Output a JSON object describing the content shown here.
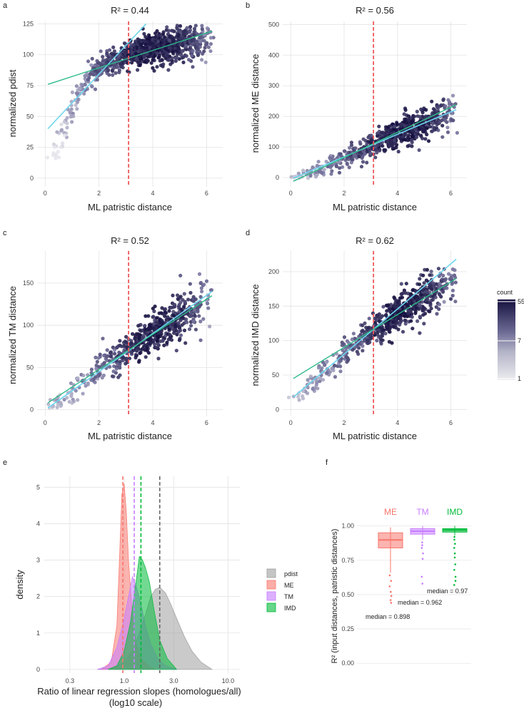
{
  "chart_data": [
    {
      "panel": "a",
      "type": "scatter",
      "title": "R² =  0.44",
      "xlabel": "ML patristic distance",
      "ylabel": "normalized pdist",
      "xlim": [
        -0.3,
        6.6
      ],
      "ylim": [
        -7,
        127
      ],
      "xticks": [
        0,
        2,
        4,
        6
      ],
      "yticks": [
        0,
        25,
        50,
        75,
        100,
        125
      ],
      "cutoff_x": 3.1,
      "fit_all": {
        "x": [
          0.1,
          6.2
        ],
        "y": [
          76,
          119
        ]
      },
      "fit_homologues": {
        "x": [
          0.1,
          3.75
        ],
        "y": [
          40,
          125
        ]
      },
      "cloud": [
        {
          "x": 0.35,
          "y": 18,
          "c": 1
        },
        {
          "x": 0.5,
          "y": 26,
          "c": 2
        },
        {
          "x": 0.65,
          "y": 38,
          "c": 3
        },
        {
          "x": 0.85,
          "y": 48,
          "c": 4
        },
        {
          "x": 1.0,
          "y": 57,
          "c": 5
        },
        {
          "x": 1.2,
          "y": 66,
          "c": 6
        },
        {
          "x": 1.4,
          "y": 74,
          "c": 8
        },
        {
          "x": 1.6,
          "y": 80,
          "c": 10
        },
        {
          "x": 1.8,
          "y": 85,
          "c": 14
        },
        {
          "x": 2.0,
          "y": 88,
          "c": 18
        },
        {
          "x": 2.2,
          "y": 92,
          "c": 22
        },
        {
          "x": 2.4,
          "y": 94,
          "c": 26
        },
        {
          "x": 2.6,
          "y": 96,
          "c": 30
        },
        {
          "x": 2.8,
          "y": 98,
          "c": 34
        },
        {
          "x": 3.0,
          "y": 100,
          "c": 40
        },
        {
          "x": 3.2,
          "y": 101,
          "c": 45
        },
        {
          "x": 3.4,
          "y": 103,
          "c": 50
        },
        {
          "x": 3.6,
          "y": 104,
          "c": 55
        },
        {
          "x": 3.8,
          "y": 105,
          "c": 55
        },
        {
          "x": 4.0,
          "y": 106,
          "c": 55
        },
        {
          "x": 4.2,
          "y": 107,
          "c": 55
        },
        {
          "x": 4.4,
          "y": 107,
          "c": 52
        },
        {
          "x": 4.6,
          "y": 108,
          "c": 50
        },
        {
          "x": 4.8,
          "y": 108,
          "c": 48
        },
        {
          "x": 5.0,
          "y": 109,
          "c": 44
        },
        {
          "x": 5.2,
          "y": 109,
          "c": 40
        },
        {
          "x": 5.4,
          "y": 110,
          "c": 34
        },
        {
          "x": 5.6,
          "y": 110,
          "c": 26
        },
        {
          "x": 5.8,
          "y": 110,
          "c": 18
        },
        {
          "x": 6.0,
          "y": 111,
          "c": 10
        }
      ],
      "spread": 12
    },
    {
      "panel": "b",
      "type": "scatter",
      "title": "R² =  0.56",
      "xlabel": "ML patristic distance",
      "ylabel": "normalized ME distance",
      "xlim": [
        -0.3,
        6.6
      ],
      "ylim": [
        -30,
        510
      ],
      "xticks": [
        0,
        2,
        4,
        6
      ],
      "yticks": [
        0,
        100,
        200,
        300,
        400,
        500
      ],
      "cutoff_x": 3.1,
      "fit_all": {
        "x": [
          0.1,
          6.2
        ],
        "y": [
          -12,
          238
        ]
      },
      "fit_homologues": {
        "x": [
          0.1,
          6.2
        ],
        "y": [
          -2,
          222
        ]
      },
      "cloud": [
        {
          "x": 0.3,
          "y": 5,
          "c": 3
        },
        {
          "x": 0.6,
          "y": 12,
          "c": 5
        },
        {
          "x": 0.9,
          "y": 22,
          "c": 7
        },
        {
          "x": 1.2,
          "y": 32,
          "c": 9
        },
        {
          "x": 1.5,
          "y": 44,
          "c": 12
        },
        {
          "x": 1.8,
          "y": 54,
          "c": 15
        },
        {
          "x": 2.1,
          "y": 66,
          "c": 18
        },
        {
          "x": 2.4,
          "y": 78,
          "c": 22
        },
        {
          "x": 2.7,
          "y": 90,
          "c": 28
        },
        {
          "x": 3.0,
          "y": 104,
          "c": 34
        },
        {
          "x": 3.3,
          "y": 115,
          "c": 40
        },
        {
          "x": 3.6,
          "y": 128,
          "c": 48
        },
        {
          "x": 3.9,
          "y": 140,
          "c": 55
        },
        {
          "x": 4.2,
          "y": 150,
          "c": 55
        },
        {
          "x": 4.5,
          "y": 162,
          "c": 55
        },
        {
          "x": 4.8,
          "y": 172,
          "c": 50
        },
        {
          "x": 5.1,
          "y": 185,
          "c": 44
        },
        {
          "x": 5.4,
          "y": 196,
          "c": 36
        },
        {
          "x": 5.7,
          "y": 205,
          "c": 26
        },
        {
          "x": 6.0,
          "y": 215,
          "c": 14
        }
      ],
      "spread": 45
    },
    {
      "panel": "c",
      "type": "scatter",
      "title": "R² =  0.52",
      "xlabel": "ML patristic distance",
      "ylabel": "normalized TM distance",
      "xlim": [
        -0.3,
        6.6
      ],
      "ylim": [
        -8,
        188
      ],
      "xticks": [
        0,
        2,
        4,
        6
      ],
      "yticks": [
        0,
        50,
        100,
        150
      ],
      "cutoff_x": 3.1,
      "fit_all": {
        "x": [
          0.1,
          6.2
        ],
        "y": [
          8,
          135
        ]
      },
      "fit_homologues": {
        "x": [
          0.1,
          6.2
        ],
        "y": [
          2,
          140
        ]
      },
      "cloud": [
        {
          "x": 0.3,
          "y": 6,
          "c": 3
        },
        {
          "x": 0.6,
          "y": 10,
          "c": 4
        },
        {
          "x": 0.9,
          "y": 18,
          "c": 5
        },
        {
          "x": 1.2,
          "y": 26,
          "c": 6
        },
        {
          "x": 1.5,
          "y": 34,
          "c": 8
        },
        {
          "x": 1.8,
          "y": 42,
          "c": 11
        },
        {
          "x": 2.1,
          "y": 50,
          "c": 14
        },
        {
          "x": 2.4,
          "y": 56,
          "c": 18
        },
        {
          "x": 2.7,
          "y": 62,
          "c": 24
        },
        {
          "x": 3.0,
          "y": 68,
          "c": 30
        },
        {
          "x": 3.3,
          "y": 75,
          "c": 38
        },
        {
          "x": 3.6,
          "y": 82,
          "c": 46
        },
        {
          "x": 3.9,
          "y": 88,
          "c": 55
        },
        {
          "x": 4.2,
          "y": 94,
          "c": 55
        },
        {
          "x": 4.5,
          "y": 100,
          "c": 52
        },
        {
          "x": 4.8,
          "y": 106,
          "c": 46
        },
        {
          "x": 5.1,
          "y": 112,
          "c": 40
        },
        {
          "x": 5.4,
          "y": 118,
          "c": 30
        },
        {
          "x": 5.7,
          "y": 124,
          "c": 20
        },
        {
          "x": 6.0,
          "y": 130,
          "c": 10
        }
      ],
      "spread": 22
    },
    {
      "panel": "d",
      "type": "scatter",
      "title": "R² =  0.62",
      "xlabel": "ML patristic distance",
      "ylabel": "normalized IMD distance",
      "xlim": [
        -0.3,
        6.6
      ],
      "ylim": [
        -10,
        230
      ],
      "xticks": [
        0,
        2,
        4,
        6
      ],
      "yticks": [
        0,
        50,
        100,
        150,
        200
      ],
      "cutoff_x": 3.1,
      "fit_all": {
        "x": [
          0.1,
          6.2
        ],
        "y": [
          45,
          190
        ]
      },
      "fit_homologues": {
        "x": [
          0.1,
          6.2
        ],
        "y": [
          18,
          218
        ]
      },
      "cloud": [
        {
          "x": 0.3,
          "y": 22,
          "c": 3
        },
        {
          "x": 0.6,
          "y": 30,
          "c": 5
        },
        {
          "x": 0.9,
          "y": 40,
          "c": 6
        },
        {
          "x": 1.2,
          "y": 52,
          "c": 8
        },
        {
          "x": 1.5,
          "y": 62,
          "c": 10
        },
        {
          "x": 1.8,
          "y": 72,
          "c": 13
        },
        {
          "x": 2.1,
          "y": 84,
          "c": 16
        },
        {
          "x": 2.4,
          "y": 94,
          "c": 20
        },
        {
          "x": 2.7,
          "y": 104,
          "c": 26
        },
        {
          "x": 3.0,
          "y": 112,
          "c": 34
        },
        {
          "x": 3.3,
          "y": 120,
          "c": 42
        },
        {
          "x": 3.6,
          "y": 128,
          "c": 52
        },
        {
          "x": 3.9,
          "y": 136,
          "c": 55
        },
        {
          "x": 4.2,
          "y": 144,
          "c": 55
        },
        {
          "x": 4.5,
          "y": 150,
          "c": 55
        },
        {
          "x": 4.8,
          "y": 158,
          "c": 50
        },
        {
          "x": 5.1,
          "y": 166,
          "c": 44
        },
        {
          "x": 5.4,
          "y": 172,
          "c": 36
        },
        {
          "x": 5.7,
          "y": 178,
          "c": 26
        },
        {
          "x": 6.0,
          "y": 184,
          "c": 14
        }
      ],
      "spread": 25
    },
    {
      "panel": "e",
      "type": "area",
      "xlabel": "Ratio of linear regression slopes (homologues/all)",
      "xlabel2": "(log10 scale)",
      "ylabel": "density",
      "xscale": "log10",
      "xlim": [
        0.17,
        13
      ],
      "ylim": [
        -0.1,
        5.3
      ],
      "xticks": [
        0.3,
        1.0,
        3.0,
        10.0
      ],
      "xtick_labels": [
        "0.3",
        "1.0",
        "3.0",
        "10.0"
      ],
      "yticks": [
        0,
        1,
        2,
        3,
        4,
        5
      ],
      "series": [
        {
          "name": "pdist",
          "color": "#9e9e9e",
          "median": 2.2,
          "x": [
            0.55,
            0.8,
            1.0,
            1.2,
            1.4,
            1.6,
            1.8,
            2.0,
            2.2,
            2.5,
            2.8,
            3.2,
            3.8,
            4.5,
            5.5,
            7.0
          ],
          "y": [
            0,
            0.05,
            0.2,
            0.5,
            1.0,
            1.5,
            2.0,
            2.2,
            2.25,
            2.1,
            1.8,
            1.4,
            0.9,
            0.5,
            0.2,
            0
          ]
        },
        {
          "name": "ME",
          "color": "#f8766d",
          "median": 0.97,
          "x": [
            0.6,
            0.75,
            0.85,
            0.9,
            0.95,
            1.0,
            1.05,
            1.1,
            1.2,
            1.3,
            1.45,
            1.7,
            2.0
          ],
          "y": [
            0,
            0.2,
            1.2,
            3.0,
            4.8,
            5.1,
            4.3,
            3.0,
            1.5,
            0.7,
            0.3,
            0.1,
            0
          ]
        },
        {
          "name": "TM",
          "color": "#c77cff",
          "median": 1.25,
          "x": [
            0.55,
            0.7,
            0.85,
            1.0,
            1.1,
            1.2,
            1.3,
            1.45,
            1.6,
            1.8,
            2.1,
            2.5,
            3.2
          ],
          "y": [
            0,
            0.1,
            0.6,
            1.4,
            2.0,
            2.55,
            2.3,
            1.8,
            1.2,
            0.7,
            0.3,
            0.1,
            0
          ]
        },
        {
          "name": "IMD",
          "color": "#00ba38",
          "median": 1.45,
          "x": [
            0.7,
            0.85,
            1.0,
            1.15,
            1.3,
            1.4,
            1.5,
            1.6,
            1.75,
            1.95,
            2.2,
            2.6,
            3.2
          ],
          "y": [
            0,
            0.1,
            0.5,
            1.3,
            2.4,
            3.1,
            3.0,
            2.8,
            2.4,
            1.6,
            0.8,
            0.3,
            0
          ]
        }
      ],
      "legend": [
        "pdist",
        "ME",
        "TM",
        "IMD"
      ]
    },
    {
      "panel": "f",
      "type": "box",
      "ylabel": "R² (input distances, patristic distances)",
      "ylim": [
        -0.03,
        1.05
      ],
      "yticks": [
        0.0,
        0.25,
        0.5,
        0.75,
        1.0
      ],
      "ytick_labels": [
        "0.00",
        "0.25",
        "0.50",
        "0.75",
        "1.00"
      ],
      "boxes": [
        {
          "name": "ME",
          "color": "#f8766d",
          "median": 0.898,
          "q1": 0.84,
          "q3": 0.95,
          "lo": 0.66,
          "hi": 0.99,
          "outliers": [
            0.64,
            0.6,
            0.56,
            0.52,
            0.49,
            0.46,
            0.44
          ],
          "label": "median = 0.898"
        },
        {
          "name": "TM",
          "color": "#c77cff",
          "median": 0.962,
          "q1": 0.94,
          "q3": 0.98,
          "lo": 0.9,
          "hi": 1.0,
          "outliers": [
            0.88,
            0.86,
            0.84,
            0.8,
            0.76,
            0.63,
            0.58
          ],
          "label": "median = 0.962"
        },
        {
          "name": "IMD",
          "color": "#00ba38",
          "median": 0.97,
          "q1": 0.955,
          "q3": 0.98,
          "lo": 0.93,
          "hi": 1.0,
          "outliers": [
            0.92,
            0.9,
            0.87,
            0.84,
            0.8,
            0.77,
            0.72,
            0.68,
            0.63,
            0.6,
            0.57
          ],
          "label": "median = 0.97"
        }
      ]
    }
  ],
  "colorbar": {
    "title": "count",
    "labels": [
      "55",
      "7",
      "1"
    ],
    "low": "#e8e8ec",
    "high": "#1a1442"
  },
  "fit_colors": {
    "all": "#2dbb8a",
    "homologues": "#6dd6ef",
    "cutoff": "#f0585a"
  }
}
